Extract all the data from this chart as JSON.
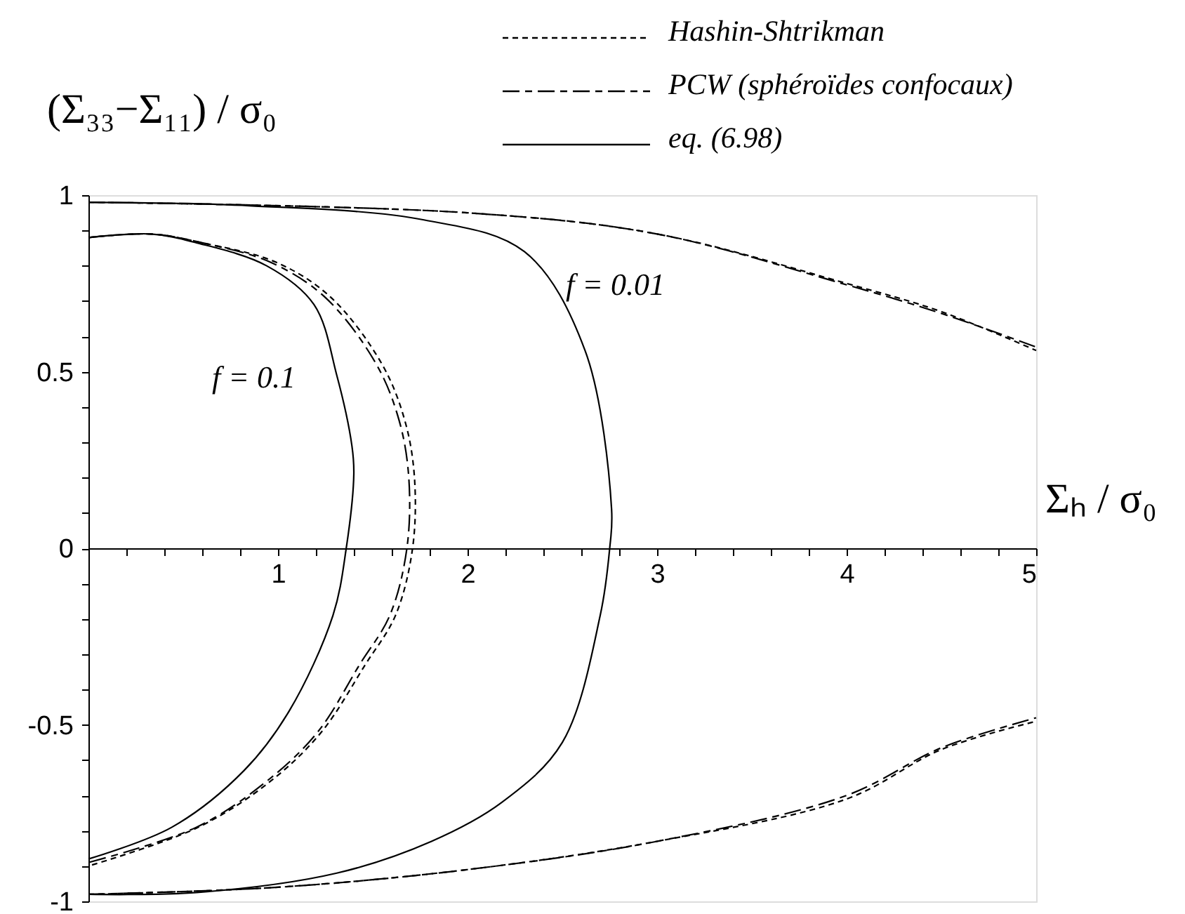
{
  "chart_data": {
    "type": "line",
    "xlabel": "Σₕ / σ₀",
    "ylabel": "(Σ₃₃−Σ₁₁) / σ₀",
    "xlim": [
      0,
      5
    ],
    "ylim": [
      -1,
      1
    ],
    "xticks": [
      {
        "value": 0.2,
        "label": null
      },
      {
        "value": 0.4,
        "label": null
      },
      {
        "value": 0.6,
        "label": null
      },
      {
        "value": 0.8,
        "label": null
      },
      1,
      {
        "value": 1.2,
        "label": null
      },
      {
        "value": 1.4,
        "label": null
      },
      {
        "value": 1.6,
        "label": null
      },
      {
        "value": 1.8,
        "label": null
      },
      2,
      {
        "value": 2.2,
        "label": null
      },
      {
        "value": 2.4,
        "label": null
      },
      {
        "value": 2.6,
        "label": null
      },
      {
        "value": 2.8,
        "label": null
      },
      3,
      {
        "value": 3.2,
        "label": null
      },
      {
        "value": 3.4,
        "label": null
      },
      {
        "value": 3.6,
        "label": null
      },
      {
        "value": 3.8,
        "label": null
      },
      4,
      {
        "value": 4.2,
        "label": null
      },
      {
        "value": 4.4,
        "label": null
      },
      {
        "value": 4.6,
        "label": null
      },
      {
        "value": 4.8,
        "label": null
      },
      5
    ],
    "yticks": [
      -1,
      {
        "value": -0.9,
        "label": null
      },
      {
        "value": -0.8,
        "label": null
      },
      {
        "value": -0.7,
        "label": null
      },
      {
        "value": -0.6,
        "label": null
      },
      -0.5,
      {
        "value": -0.4,
        "label": null
      },
      {
        "value": -0.3,
        "label": null
      },
      {
        "value": -0.2,
        "label": null
      },
      {
        "value": -0.1,
        "label": null
      },
      0,
      {
        "value": 0.1,
        "label": null
      },
      {
        "value": 0.2,
        "label": null
      },
      {
        "value": 0.3,
        "label": null
      },
      {
        "value": 0.4,
        "label": null
      },
      0.5,
      {
        "value": 0.6,
        "label": null
      },
      {
        "value": 0.7,
        "label": null
      },
      {
        "value": 0.8,
        "label": null
      },
      {
        "value": 0.9,
        "label": null
      },
      1
    ],
    "grid": false,
    "legend": "top",
    "marker": "none",
    "annotations": [
      "f = 0.1",
      "f = 0.01"
    ],
    "series": [
      {
        "name": "Hashin-Shtrikman",
        "color": "#000000",
        "line_style": "dotted",
        "x": [
          0,
          2,
          3,
          4,
          4.5,
          5
        ],
        "values": [
          0.98,
          0.95,
          0.89,
          0.75,
          0.67,
          0.56
        ]
      },
      {
        "name": "PCW (sphéroïdes confocaux)",
        "color": "#000000",
        "line_style": "dashed",
        "x": [
          0,
          2,
          3,
          4,
          4.5,
          5
        ],
        "values": [
          0.98,
          0.95,
          0.89,
          0.746,
          0.665,
          0.57
        ]
      },
      {
        "name": "eq. (6.98)",
        "color": "#000000",
        "line_style": "solid",
        "x": [
          0,
          0.85,
          1.77,
          2.3,
          2.62,
          2.76,
          2.75,
          2.7,
          2.5,
          2.18,
          1.81,
          1.31,
          0.57,
          0
        ],
        "values": [
          0.98,
          0.97,
          0.93,
          0.84,
          0.56,
          0.11,
          0,
          -0.19,
          -0.55,
          -0.72,
          -0.83,
          -0.92,
          -0.975,
          -0.98
        ]
      },
      {
        "color": "#000000",
        "line_style": "dotted",
        "x": [
          0,
          1,
          2,
          3,
          4,
          4.5,
          5
        ],
        "values": [
          -0.98,
          -0.96,
          -0.91,
          -0.83,
          -0.71,
          -0.57,
          -0.49
        ]
      },
      {
        "color": "#000000",
        "line_style": "dashed",
        "x": [
          0,
          1,
          2,
          3,
          4,
          4.5,
          5
        ],
        "values": [
          -0.98,
          -0.96,
          -0.91,
          -0.83,
          -0.7,
          -0.565,
          -0.48
        ]
      },
      {
        "color": "#000000",
        "line_style": "dotted",
        "x": [
          0,
          0.33,
          0.6,
          0.99,
          1.28,
          1.55,
          1.67,
          1.72,
          1.71,
          1.62,
          1.46,
          1.23,
          0.96,
          0.58,
          0
        ],
        "values": [
          0.88,
          0.89,
          0.865,
          0.81,
          0.71,
          0.52,
          0.36,
          0.2,
          0,
          -0.19,
          -0.33,
          -0.52,
          -0.66,
          -0.79,
          -0.9
        ]
      },
      {
        "color": "#000000",
        "line_style": "dashed",
        "x": [
          0,
          0.33,
          0.6,
          0.96,
          1.25,
          1.52,
          1.64,
          1.69,
          1.68,
          1.59,
          1.43,
          1.21,
          0.94,
          0.57,
          0
        ],
        "values": [
          0.88,
          0.89,
          0.865,
          0.81,
          0.71,
          0.52,
          0.36,
          0.2,
          0,
          -0.19,
          -0.33,
          -0.52,
          -0.66,
          -0.79,
          -0.89
        ]
      },
      {
        "color": "#000000",
        "line_style": "solid",
        "x": [
          0,
          0.33,
          0.57,
          0.94,
          1.19,
          1.31,
          1.39,
          1.4,
          1.36,
          1.29,
          1.06,
          0.82,
          0.44,
          0
        ],
        "values": [
          0.88,
          0.89,
          0.865,
          0.8,
          0.69,
          0.49,
          0.29,
          0.21,
          0,
          -0.19,
          -0.46,
          -0.63,
          -0.79,
          -0.88
        ]
      }
    ]
  }
}
